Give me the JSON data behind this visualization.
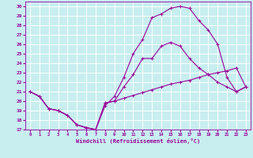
{
  "xlabel": "Windchill (Refroidissement éolien,°C)",
  "bg_color": "#c8eef0",
  "grid_color": "#ffffff",
  "line_color": "#990099",
  "xlim": [
    -0.5,
    23.5
  ],
  "ylim": [
    17,
    30.5
  ],
  "yticks": [
    17,
    18,
    19,
    20,
    21,
    22,
    23,
    24,
    25,
    26,
    27,
    28,
    29,
    30
  ],
  "xticks": [
    0,
    1,
    2,
    3,
    4,
    5,
    6,
    7,
    8,
    9,
    10,
    11,
    12,
    13,
    14,
    15,
    16,
    17,
    18,
    19,
    20,
    21,
    22,
    23
  ],
  "curve1_x": [
    0,
    1,
    2,
    3,
    4,
    5,
    6,
    7,
    8,
    9,
    10,
    11,
    12,
    13,
    14,
    15,
    16,
    17,
    18,
    19,
    20,
    21,
    22,
    23
  ],
  "curve1_y": [
    21.0,
    20.5,
    19.2,
    19.0,
    18.5,
    17.5,
    17.2,
    17.0,
    19.8,
    20.0,
    20.3,
    20.6,
    20.9,
    21.2,
    21.5,
    21.8,
    22.0,
    22.2,
    22.5,
    22.8,
    23.0,
    23.2,
    23.5,
    21.5
  ],
  "curve2_x": [
    0,
    1,
    2,
    3,
    4,
    5,
    6,
    7,
    8,
    9,
    10,
    11,
    12,
    13,
    14,
    15,
    16,
    17,
    18,
    19,
    20,
    21,
    22,
    23
  ],
  "curve2_y": [
    21.0,
    20.5,
    19.2,
    19.0,
    18.5,
    17.5,
    17.2,
    17.0,
    19.8,
    20.0,
    21.5,
    22.8,
    24.5,
    24.5,
    25.8,
    26.2,
    25.8,
    24.5,
    23.5,
    22.8,
    22.0,
    21.5,
    21.0,
    21.5
  ],
  "curve3_x": [
    0,
    1,
    2,
    3,
    4,
    5,
    6,
    7,
    8,
    9,
    10,
    11,
    12,
    13,
    14,
    15,
    16,
    17,
    18,
    19,
    20,
    21,
    22,
    23
  ],
  "curve3_y": [
    21.0,
    20.5,
    19.2,
    19.0,
    18.5,
    17.5,
    17.2,
    17.0,
    19.5,
    20.5,
    22.5,
    25.0,
    26.5,
    28.8,
    29.2,
    29.8,
    30.0,
    29.8,
    28.5,
    27.5,
    26.0,
    22.5,
    21.0,
    21.5
  ]
}
